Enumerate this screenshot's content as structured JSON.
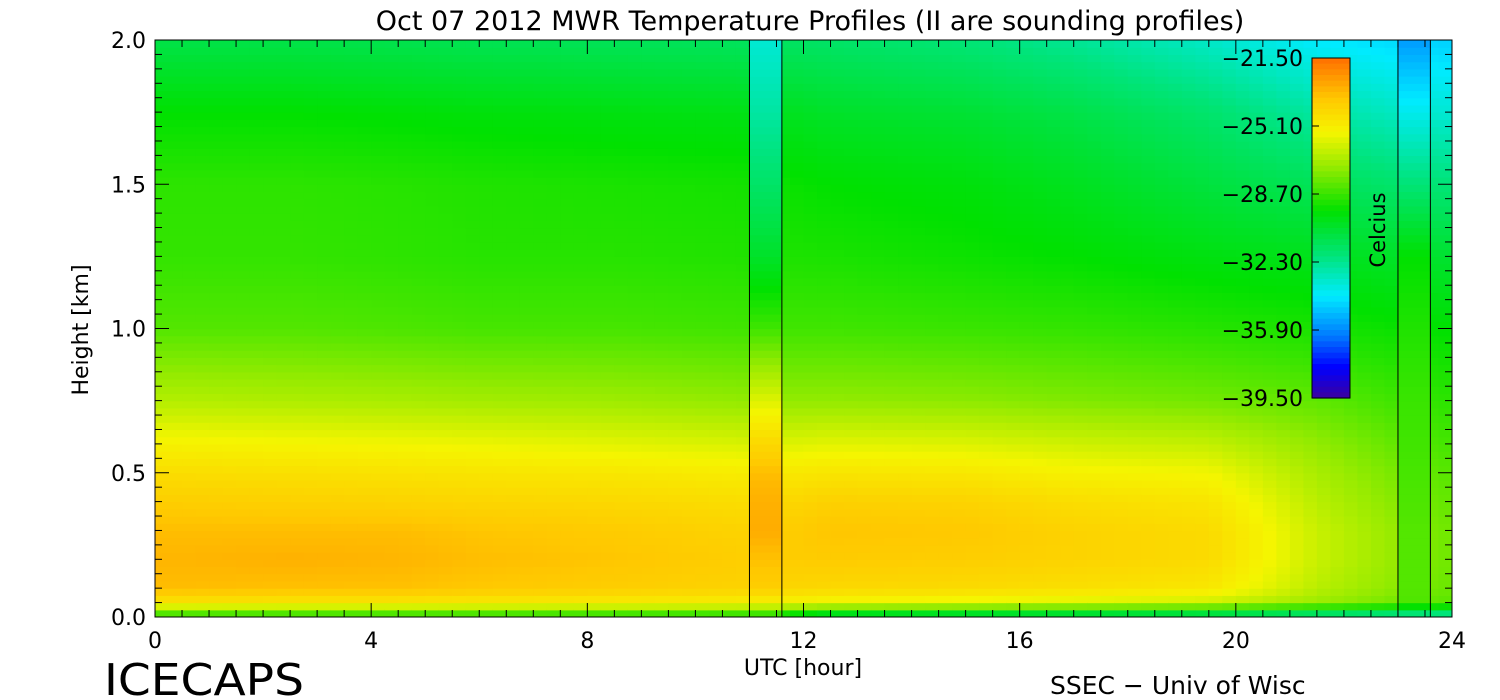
{
  "chart_data": {
    "type": "heatmap",
    "title": "Oct 07 2012 MWR Temperature Profiles (II are sounding profiles)",
    "xlabel": "UTC [hour]",
    "ylabel": "Height [km]",
    "xlim": [
      0,
      24
    ],
    "ylim": [
      0.0,
      2.0
    ],
    "xticks": [
      0,
      4,
      8,
      12,
      16,
      20,
      24
    ],
    "xtick_labels": [
      "0",
      "4",
      "8",
      "12",
      "16",
      "20",
      "24"
    ],
    "yticks": [
      0.0,
      0.5,
      1.0,
      1.5,
      2.0
    ],
    "ytick_labels": [
      "0.0",
      "0.5",
      "1.0",
      "1.5",
      "2.0"
    ],
    "colorbar": {
      "label": "Celcius",
      "range": [
        -39.5,
        -21.5
      ],
      "tick_values": [
        -21.5,
        -25.1,
        -28.7,
        -32.3,
        -35.9,
        -39.5
      ],
      "tick_labels": [
        "−21.50",
        "−25.10",
        "−28.70",
        "−32.30",
        "−35.90",
        "−39.50"
      ]
    },
    "sounding_profiles_utc": [
      [
        11.0,
        11.6
      ],
      [
        23.0,
        23.6
      ]
    ],
    "profile_heights_km": [
      0.0,
      0.05,
      0.1,
      0.2,
      0.3,
      0.4,
      0.5,
      0.6,
      0.75,
      1.0,
      1.25,
      1.5,
      1.75,
      2.0
    ],
    "mwr_profiles": [
      {
        "utc": 0.5,
        "temps": [
          -29.5,
          -24.8,
          -23.4,
          -23.2,
          -23.4,
          -23.9,
          -24.5,
          -25.3,
          -26.7,
          -28.3,
          -28.8,
          -28.9,
          -29.6,
          -31.0
        ]
      },
      {
        "utc": 2.5,
        "temps": [
          -29.5,
          -24.9,
          -23.5,
          -23.1,
          -23.4,
          -24.0,
          -24.6,
          -25.4,
          -26.8,
          -28.3,
          -28.8,
          -28.9,
          -29.6,
          -31.0
        ]
      },
      {
        "utc": 4.5,
        "temps": [
          -29.5,
          -24.9,
          -23.5,
          -23.2,
          -23.4,
          -24.1,
          -24.7,
          -25.5,
          -26.9,
          -28.4,
          -28.9,
          -29.0,
          -29.7,
          -31.1
        ]
      },
      {
        "utc": 6.0,
        "temps": [
          -29.5,
          -25.0,
          -23.7,
          -23.4,
          -23.6,
          -24.2,
          -24.8,
          -25.6,
          -27.0,
          -28.5,
          -29.0,
          -29.1,
          -29.8,
          -31.2
        ]
      },
      {
        "utc": 8.5,
        "temps": [
          -29.6,
          -25.1,
          -23.9,
          -23.6,
          -23.8,
          -24.3,
          -24.9,
          -25.8,
          -27.1,
          -28.5,
          -29.0,
          -29.2,
          -29.9,
          -31.3
        ]
      },
      {
        "utc": 10.9,
        "temps": [
          -29.7,
          -25.2,
          -24.1,
          -23.9,
          -24.1,
          -24.5,
          -25.1,
          -26.0,
          -27.3,
          -28.6,
          -29.1,
          -29.3,
          -30.0,
          -31.4
        ]
      },
      {
        "utc": 12.5,
        "temps": [
          -31.5,
          -25.6,
          -24.3,
          -23.8,
          -23.6,
          -24.0,
          -24.8,
          -25.8,
          -27.3,
          -28.6,
          -29.2,
          -29.6,
          -30.4,
          -31.6
        ]
      },
      {
        "utc": 15.0,
        "temps": [
          -31.8,
          -25.8,
          -24.4,
          -23.9,
          -23.7,
          -24.1,
          -24.9,
          -25.9,
          -27.4,
          -28.7,
          -29.4,
          -29.8,
          -30.6,
          -31.9
        ]
      },
      {
        "utc": 17.0,
        "temps": [
          -32.0,
          -26.0,
          -24.6,
          -24.1,
          -24.1,
          -24.5,
          -25.3,
          -26.2,
          -27.6,
          -28.8,
          -29.6,
          -30.2,
          -31.0,
          -32.4
        ]
      },
      {
        "utc": 19.5,
        "temps": [
          -32.3,
          -26.3,
          -24.9,
          -24.4,
          -24.4,
          -24.8,
          -25.5,
          -26.4,
          -27.8,
          -29.0,
          -29.9,
          -30.8,
          -31.7,
          -33.2
        ]
      },
      {
        "utc": 21.5,
        "temps": [
          -32.8,
          -27.2,
          -26.6,
          -26.3,
          -26.3,
          -26.6,
          -26.9,
          -27.3,
          -28.1,
          -29.2,
          -30.1,
          -31.3,
          -32.6,
          -34.1
        ]
      },
      {
        "utc": 23.8,
        "temps": [
          -33.2,
          -28.2,
          -27.9,
          -27.8,
          -27.8,
          -28.0,
          -28.2,
          -28.5,
          -28.9,
          -29.6,
          -30.5,
          -31.9,
          -33.4,
          -34.6
        ]
      }
    ],
    "sounding_profiles": [
      {
        "utc": 11.3,
        "temps": [
          -29.7,
          -25.3,
          -23.9,
          -23.5,
          -23.0,
          -23.1,
          -23.4,
          -24.3,
          -25.9,
          -28.6,
          -30.4,
          -31.6,
          -32.6,
          -33.4
        ]
      },
      {
        "utc": 23.3,
        "temps": [
          -33.0,
          -28.4,
          -28.3,
          -28.3,
          -28.3,
          -28.4,
          -28.5,
          -28.6,
          -28.7,
          -29.1,
          -29.6,
          -31.9,
          -33.8,
          -35.6
        ]
      }
    ]
  },
  "footer": {
    "left": "ICECAPS",
    "right": "SSEC − Univ of Wisc"
  }
}
